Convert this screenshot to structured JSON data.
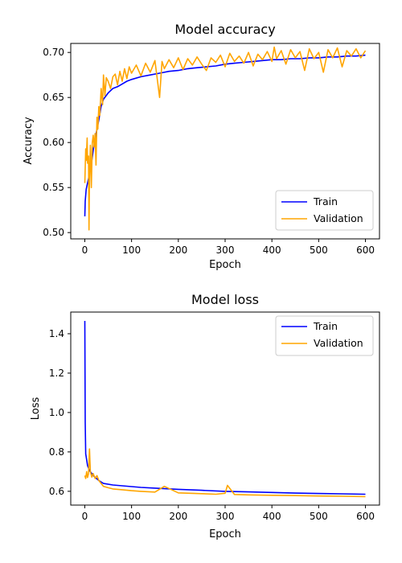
{
  "chart_data": [
    {
      "type": "line",
      "title": "Model accuracy",
      "xlabel": "Epoch",
      "ylabel": "Accuracy",
      "xlim": [
        -30,
        630
      ],
      "ylim": [
        0.493,
        0.71
      ],
      "xticks": [
        "0",
        "100",
        "200",
        "300",
        "400",
        "500",
        "600"
      ],
      "yticks": [
        "0.50",
        "0.55",
        "0.60",
        "0.65",
        "0.70"
      ],
      "legend_position": "lower-right",
      "series": [
        {
          "name": "Train",
          "color": "#0000ff",
          "x": [
            0,
            1,
            3,
            5,
            8,
            10,
            15,
            20,
            25,
            30,
            35,
            40,
            50,
            60,
            70,
            80,
            90,
            100,
            120,
            140,
            160,
            180,
            200,
            220,
            240,
            260,
            280,
            300,
            320,
            340,
            360,
            380,
            400,
            420,
            440,
            460,
            480,
            500,
            520,
            540,
            560,
            580,
            600
          ],
          "y": [
            0.518,
            0.535,
            0.548,
            0.553,
            0.56,
            0.568,
            0.58,
            0.598,
            0.612,
            0.625,
            0.64,
            0.648,
            0.655,
            0.66,
            0.662,
            0.665,
            0.668,
            0.67,
            0.673,
            0.675,
            0.677,
            0.679,
            0.68,
            0.682,
            0.683,
            0.684,
            0.685,
            0.687,
            0.688,
            0.689,
            0.69,
            0.691,
            0.692,
            0.692,
            0.693,
            0.693,
            0.694,
            0.694,
            0.695,
            0.695,
            0.696,
            0.696,
            0.697
          ]
        },
        {
          "name": "Validation",
          "color": "#ffa500",
          "x": [
            0,
            2,
            3,
            5,
            6,
            8,
            9,
            10,
            12,
            14,
            16,
            18,
            20,
            22,
            24,
            26,
            28,
            30,
            32,
            35,
            38,
            40,
            43,
            46,
            50,
            55,
            60,
            65,
            70,
            75,
            80,
            85,
            90,
            95,
            100,
            110,
            120,
            130,
            140,
            150,
            160,
            165,
            170,
            180,
            190,
            200,
            210,
            220,
            230,
            240,
            250,
            260,
            270,
            280,
            290,
            300,
            310,
            320,
            330,
            340,
            350,
            360,
            370,
            380,
            390,
            400,
            405,
            410,
            420,
            430,
            440,
            450,
            460,
            470,
            480,
            490,
            500,
            510,
            520,
            530,
            540,
            550,
            560,
            570,
            580,
            590,
            600
          ],
          "y": [
            0.555,
            0.593,
            0.58,
            0.605,
            0.577,
            0.585,
            0.503,
            0.56,
            0.597,
            0.55,
            0.6,
            0.608,
            0.595,
            0.61,
            0.575,
            0.628,
            0.615,
            0.64,
            0.63,
            0.66,
            0.642,
            0.675,
            0.652,
            0.672,
            0.668,
            0.66,
            0.673,
            0.676,
            0.664,
            0.679,
            0.668,
            0.682,
            0.671,
            0.684,
            0.677,
            0.686,
            0.674,
            0.688,
            0.678,
            0.691,
            0.65,
            0.69,
            0.682,
            0.692,
            0.683,
            0.694,
            0.681,
            0.693,
            0.686,
            0.695,
            0.687,
            0.68,
            0.694,
            0.689,
            0.697,
            0.684,
            0.699,
            0.69,
            0.696,
            0.688,
            0.7,
            0.685,
            0.698,
            0.692,
            0.701,
            0.69,
            0.706,
            0.693,
            0.702,
            0.687,
            0.703,
            0.694,
            0.701,
            0.68,
            0.704,
            0.693,
            0.7,
            0.678,
            0.703,
            0.694,
            0.705,
            0.684,
            0.702,
            0.696,
            0.704,
            0.694,
            0.702
          ]
        }
      ]
    },
    {
      "type": "line",
      "title": "Model loss",
      "xlabel": "Epoch",
      "ylabel": "Loss",
      "xlim": [
        -30,
        630
      ],
      "ylim": [
        0.53,
        1.51
      ],
      "xticks": [
        "0",
        "100",
        "200",
        "300",
        "400",
        "500",
        "600"
      ],
      "yticks": [
        "0.6",
        "0.8",
        "1.0",
        "1.2",
        "1.4"
      ],
      "legend_position": "upper-right",
      "series": [
        {
          "name": "Train",
          "color": "#0000ff",
          "x": [
            0,
            1,
            2,
            4,
            6,
            10,
            15,
            20,
            30,
            40,
            60,
            80,
            100,
            120,
            150,
            200,
            250,
            300,
            350,
            400,
            450,
            500,
            550,
            600
          ],
          "y": [
            1.465,
            0.95,
            0.79,
            0.76,
            0.73,
            0.705,
            0.69,
            0.675,
            0.655,
            0.64,
            0.632,
            0.628,
            0.624,
            0.62,
            0.616,
            0.61,
            0.605,
            0.6,
            0.597,
            0.594,
            0.591,
            0.589,
            0.587,
            0.585
          ]
        },
        {
          "name": "Validation",
          "color": "#ffa500",
          "x": [
            0,
            2,
            4,
            6,
            8,
            10,
            12,
            15,
            18,
            22,
            26,
            30,
            35,
            40,
            50,
            60,
            80,
            100,
            120,
            150,
            170,
            200,
            250,
            280,
            300,
            305,
            320,
            350,
            400,
            450,
            500,
            550,
            600
          ],
          "y": [
            0.68,
            0.665,
            0.7,
            0.67,
            0.69,
            0.815,
            0.7,
            0.672,
            0.69,
            0.665,
            0.68,
            0.655,
            0.64,
            0.625,
            0.618,
            0.612,
            0.608,
            0.603,
            0.6,
            0.596,
            0.625,
            0.592,
            0.588,
            0.585,
            0.59,
            0.63,
            0.584,
            0.582,
            0.58,
            0.578,
            0.576,
            0.575,
            0.573
          ]
        }
      ]
    }
  ]
}
